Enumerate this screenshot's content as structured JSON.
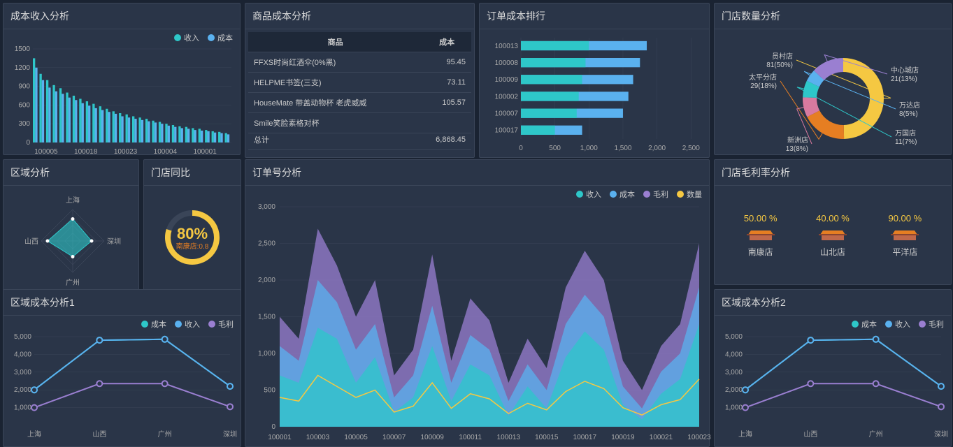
{
  "colors": {
    "teal": "#2ec7c9",
    "blue": "#5ab1ef",
    "purple": "#9a7fd1",
    "yellow": "#f5c842",
    "orange": "#e67e22",
    "pink": "#d87a9f",
    "bg": "#2a3548",
    "grid": "#3a4558",
    "text": "#ccc"
  },
  "bar_chart": {
    "title": "成本收入分析",
    "legend": [
      {
        "label": "收入",
        "color": "#2ec7c9"
      },
      {
        "label": "成本",
        "color": "#5ab1ef"
      }
    ],
    "y_max": 1500,
    "y_ticks": [
      0,
      300,
      600,
      900,
      1200,
      1500
    ],
    "x_labels": [
      "100005",
      "100018",
      "100023",
      "100004",
      "100001"
    ],
    "series": [
      [
        1350,
        1100,
        1000,
        920,
        870,
        800,
        750,
        700,
        660,
        620,
        580,
        540,
        500,
        470,
        450,
        420,
        400,
        380,
        350,
        330,
        300,
        280,
        260,
        250,
        230,
        220,
        200,
        180,
        170,
        150
      ],
      [
        1200,
        1000,
        880,
        820,
        780,
        720,
        680,
        630,
        590,
        550,
        520,
        490,
        460,
        420,
        400,
        380,
        360,
        340,
        320,
        300,
        270,
        250,
        230,
        220,
        200,
        190,
        180,
        160,
        150,
        130
      ]
    ]
  },
  "cost_table": {
    "title": "商品成本分析",
    "columns": [
      "商品",
      "成本"
    ],
    "rows": [
      [
        "FFXS时尚红酒伞(0%黑)",
        "95.45"
      ],
      [
        "HELPME书签(三支)",
        "73.11"
      ],
      [
        "HouseMate 带盖动物杯 老虎威威",
        "105.57"
      ],
      [
        "Smile笑脸素格对杯",
        ""
      ]
    ],
    "total_label": "总计",
    "total_value": "6,868.45"
  },
  "order_rank": {
    "title": "订单成本排行",
    "y_labels": [
      "100013",
      "100008",
      "100009",
      "100002",
      "100007",
      "100017"
    ],
    "x_ticks": [
      0,
      500,
      1000,
      1500,
      2000,
      2500
    ],
    "x_max": 2600,
    "bars": [
      {
        "a": 1000,
        "b": 1850
      },
      {
        "a": 950,
        "b": 1750
      },
      {
        "a": 900,
        "b": 1650
      },
      {
        "a": 850,
        "b": 1580
      },
      {
        "a": 820,
        "b": 1500
      },
      {
        "a": 500,
        "b": 900
      }
    ]
  },
  "donut": {
    "title": "门店数量分析",
    "slices": [
      {
        "label": "员村店",
        "value": 81,
        "pct": "50%",
        "color": "#f5c842"
      },
      {
        "label": "太平分店",
        "value": 29,
        "pct": "18%",
        "color": "#e67e22"
      },
      {
        "label": "新洲店",
        "value": 13,
        "pct": "8%",
        "color": "#d87a9f"
      },
      {
        "label": "万国店",
        "value": 11,
        "pct": "7%",
        "color": "#2ec7c9"
      },
      {
        "label": "万达店",
        "value": 8,
        "pct": "5%",
        "color": "#5ab1ef"
      },
      {
        "label": "中心城店",
        "value": 21,
        "pct": "13%",
        "color": "#9a7fd1"
      }
    ]
  },
  "radar": {
    "title": "区域分析",
    "axes": [
      "上海",
      "深圳",
      "广州",
      "山西"
    ],
    "values": [
      0.7,
      0.6,
      0.5,
      0.8
    ]
  },
  "gauge": {
    "title": "门店同比",
    "pct": "80%",
    "sub": "南康店:0.8",
    "value": 0.8
  },
  "area": {
    "title": "订单号分析",
    "legend": [
      {
        "label": "收入",
        "color": "#2ec7c9"
      },
      {
        "label": "成本",
        "color": "#5ab1ef"
      },
      {
        "label": "毛利",
        "color": "#9a7fd1"
      },
      {
        "label": "数量",
        "color": "#f5c842"
      }
    ],
    "x_labels": [
      "100001",
      "100003",
      "100005",
      "100007",
      "100009",
      "100011",
      "100013",
      "100015",
      "100017",
      "100019",
      "100021",
      "100023"
    ],
    "y_max": 3000,
    "y_ticks": [
      0,
      500,
      1000,
      1500,
      2000,
      2500,
      3000
    ],
    "series_revenue": [
      700,
      600,
      1350,
      1200,
      600,
      950,
      200,
      400,
      1100,
      350,
      850,
      700,
      150,
      550,
      250,
      950,
      1300,
      1050,
      300,
      100,
      450,
      650,
      1400
    ],
    "series_cost": [
      1100,
      900,
      2000,
      1700,
      1050,
      1400,
      400,
      700,
      1650,
      600,
      1250,
      1050,
      350,
      850,
      500,
      1400,
      1800,
      1500,
      550,
      250,
      750,
      1000,
      1900
    ],
    "series_profit": [
      1500,
      1200,
      2700,
      2200,
      1500,
      2000,
      700,
      1050,
      2350,
      900,
      1750,
      1450,
      600,
      1200,
      800,
      1900,
      2400,
      2000,
      900,
      500,
      1100,
      1400,
      2500
    ],
    "series_qty": [
      400,
      350,
      700,
      550,
      400,
      500,
      200,
      280,
      600,
      250,
      450,
      380,
      180,
      320,
      230,
      480,
      620,
      520,
      260,
      160,
      300,
      370,
      650
    ]
  },
  "line1": {
    "title": "区域成本分析1",
    "legend": [
      {
        "label": "成本",
        "color": "#2ec7c9"
      },
      {
        "label": "收入",
        "color": "#5ab1ef"
      },
      {
        "label": "毛利",
        "color": "#9a7fd1"
      }
    ],
    "x_labels": [
      "上海",
      "山西",
      "广州",
      "深圳"
    ],
    "y_max": 5000,
    "y_ticks": [
      1000,
      2000,
      3000,
      4000,
      5000
    ],
    "series": [
      [
        2000,
        4800,
        4850,
        2200
      ],
      [
        2000,
        4800,
        4850,
        2200
      ],
      [
        1000,
        2350,
        2350,
        1050
      ]
    ]
  },
  "profit_rate": {
    "title": "门店毛利率分析",
    "stores": [
      {
        "name": "南康店",
        "pct": "50.00 %"
      },
      {
        "name": "山北店",
        "pct": "40.00 %"
      },
      {
        "name": "平洋店",
        "pct": "90.00 %"
      }
    ]
  },
  "line2": {
    "title": "区域成本分析2",
    "legend": [
      {
        "label": "成本",
        "color": "#2ec7c9"
      },
      {
        "label": "收入",
        "color": "#5ab1ef"
      },
      {
        "label": "毛利",
        "color": "#9a7fd1"
      }
    ],
    "x_labels": [
      "上海",
      "山西",
      "广州",
      "深圳"
    ],
    "y_max": 5000,
    "y_ticks": [
      1000,
      2000,
      3000,
      4000,
      5000
    ],
    "series": [
      [
        2000,
        4800,
        4850,
        2200
      ],
      [
        2000,
        4800,
        4850,
        2200
      ],
      [
        1000,
        2350,
        2350,
        1050
      ]
    ]
  }
}
